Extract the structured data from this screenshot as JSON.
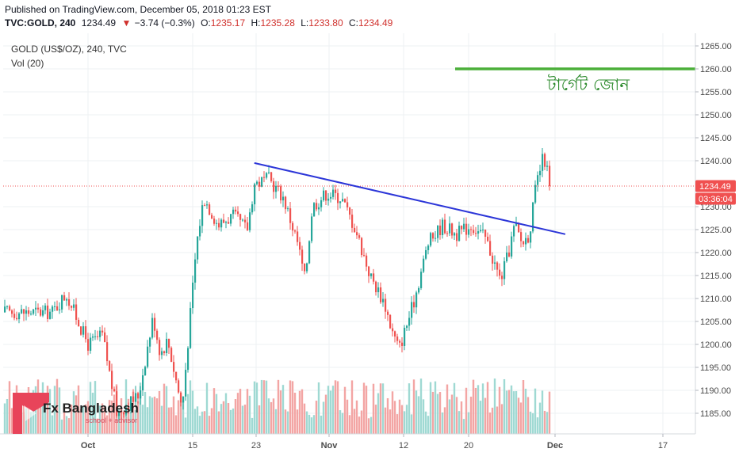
{
  "header": {
    "published": "Published on TradingView.com, December 05, 2018 01:23 EST",
    "symbol": "TVC:GOLD, 240",
    "last": "1234.49",
    "change_arrow": "▼",
    "change": "−3.74 (−0.3%)",
    "o_label": "O:",
    "o_value": "1235.17",
    "h_label": "H:",
    "h_value": "1235.28",
    "l_label": "L:",
    "l_value": "1233.80",
    "c_label": "C:",
    "c_value": "1234.49"
  },
  "legend": {
    "series_title": "GOLD (US$/OZ), 240, TVC",
    "volume": "Vol (20)"
  },
  "annotation": {
    "target_zone": "টার্গেট জোন"
  },
  "price_label": {
    "last_price": "1234.49",
    "countdown": "03:36:04"
  },
  "branding": {
    "name": "Fx Bangladesh",
    "tagline": "school + advisor",
    "logo_color": "#e8445a"
  },
  "colors": {
    "up": "#26a69a",
    "down": "#ef5350",
    "vol_up": "#9fd9d3",
    "vol_down": "#f3a5a4",
    "trendline": "#2c36d8",
    "target_line": "#4caf3a",
    "last_price_bg": "#f05050",
    "grid": "#eef0f3"
  },
  "chart_data": {
    "type": "candlestick",
    "title": "GOLD (US$/OZ), 240, TVC",
    "timeframe": "240",
    "ylim": [
      1180,
      1267
    ],
    "y_ticks": [
      1185.0,
      1190.0,
      1195.0,
      1200.0,
      1205.0,
      1210.0,
      1215.0,
      1220.0,
      1225.0,
      1230.0,
      1240.0,
      1245.0,
      1250.0,
      1255.0,
      1260.0,
      1265.0
    ],
    "x_tick_labels": [
      "Oct",
      "15",
      "23",
      "Nov",
      "12",
      "20",
      "Dec",
      "17"
    ],
    "grid": true,
    "last_price": 1234.49,
    "price_path": [
      {
        "date": "2018-09-26",
        "close": 1207
      },
      {
        "date": "2018-09-28",
        "close": 1211
      },
      {
        "date": "2018-10-01",
        "close": 1200
      },
      {
        "date": "2018-10-03",
        "close": 1202
      },
      {
        "date": "2018-10-05",
        "close": 1185
      },
      {
        "date": "2018-10-08",
        "close": 1189
      },
      {
        "date": "2018-10-10",
        "close": 1206
      },
      {
        "date": "2018-10-11",
        "close": 1198
      },
      {
        "date": "2018-10-12",
        "close": 1201
      },
      {
        "date": "2018-10-14",
        "close": 1186
      },
      {
        "date": "2018-10-16",
        "close": 1222
      },
      {
        "date": "2018-10-17",
        "close": 1232
      },
      {
        "date": "2018-10-19",
        "close": 1226
      },
      {
        "date": "2018-10-21",
        "close": 1228
      },
      {
        "date": "2018-10-23",
        "close": 1225
      },
      {
        "date": "2018-10-24",
        "close": 1235
      },
      {
        "date": "2018-10-26",
        "close": 1236
      },
      {
        "date": "2018-10-28",
        "close": 1232
      },
      {
        "date": "2018-10-30",
        "close": 1222
      },
      {
        "date": "2018-10-31",
        "close": 1214
      },
      {
        "date": "2018-11-01",
        "close": 1230
      },
      {
        "date": "2018-11-03",
        "close": 1233
      },
      {
        "date": "2018-11-05",
        "close": 1232
      },
      {
        "date": "2018-11-07",
        "close": 1225
      },
      {
        "date": "2018-11-09",
        "close": 1215
      },
      {
        "date": "2018-11-11",
        "close": 1209
      },
      {
        "date": "2018-11-12",
        "close": 1203
      },
      {
        "date": "2018-11-13",
        "close": 1199
      },
      {
        "date": "2018-11-15",
        "close": 1209
      },
      {
        "date": "2018-11-17",
        "close": 1222
      },
      {
        "date": "2018-11-19",
        "close": 1226
      },
      {
        "date": "2018-11-21",
        "close": 1224
      },
      {
        "date": "2018-11-23",
        "close": 1226
      },
      {
        "date": "2018-11-25",
        "close": 1223
      },
      {
        "date": "2018-11-27",
        "close": 1214
      },
      {
        "date": "2018-11-28",
        "close": 1219
      },
      {
        "date": "2018-11-29",
        "close": 1226
      },
      {
        "date": "2018-11-30",
        "close": 1222
      },
      {
        "date": "2018-12-01",
        "close": 1224
      },
      {
        "date": "2018-12-02",
        "close": 1235
      },
      {
        "date": "2018-12-03",
        "close": 1241
      },
      {
        "date": "2018-12-04",
        "close": 1234.49
      }
    ],
    "trendline": {
      "from": {
        "date": "2018-10-24",
        "price": 1239.5
      },
      "to": {
        "date": "2018-12-06",
        "price": 1224
      }
    },
    "target_zone_level": 1260,
    "volume_label": "Vol (20)"
  }
}
